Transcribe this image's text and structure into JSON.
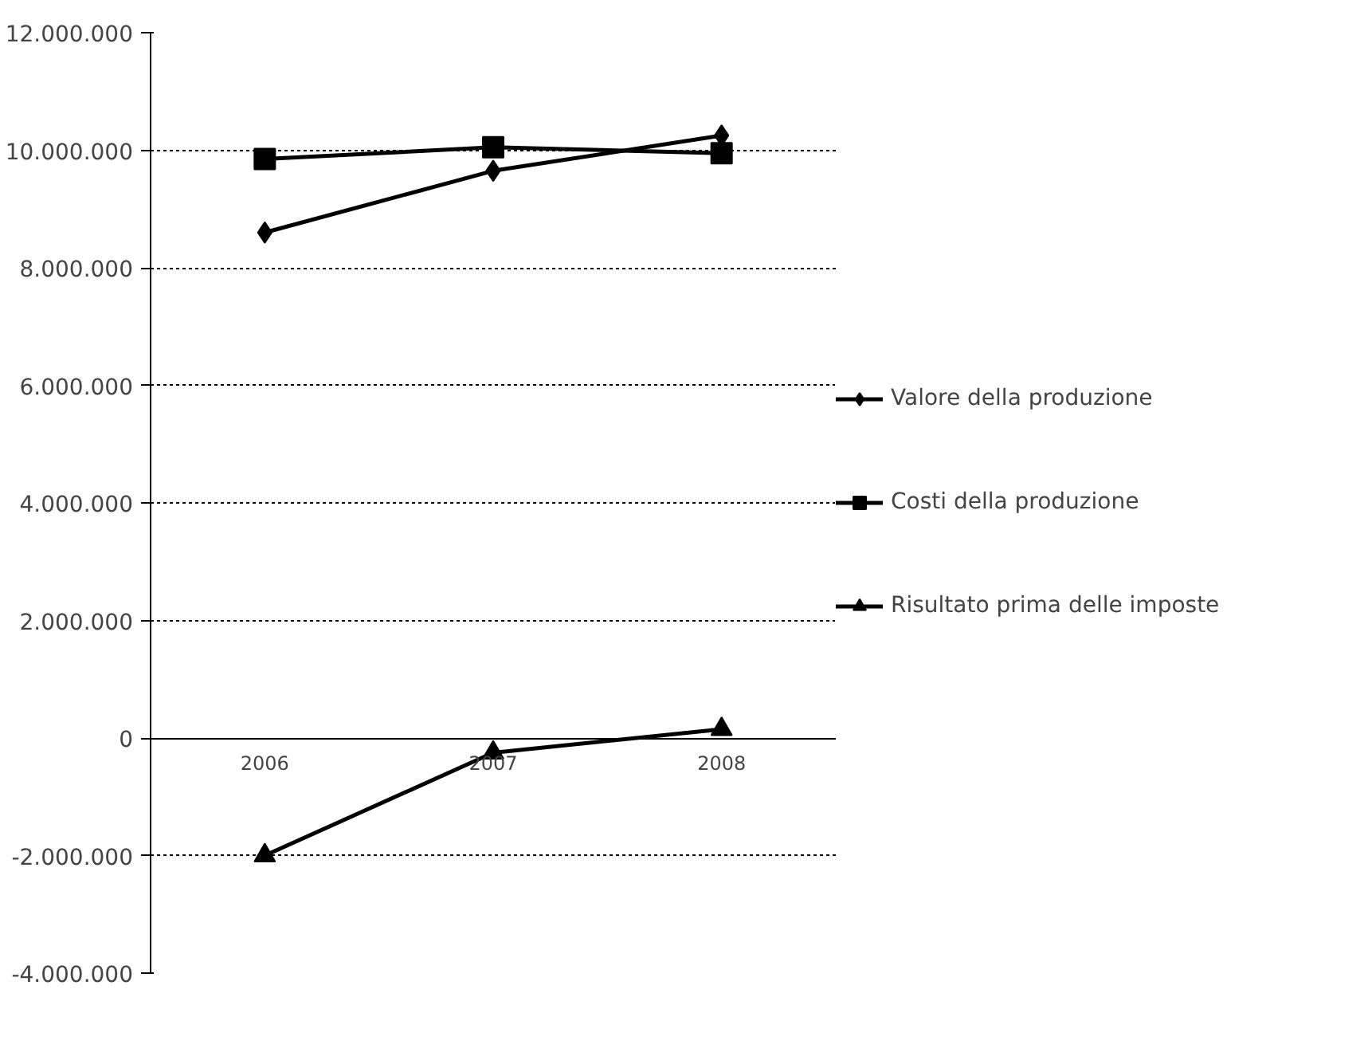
{
  "chart_data": {
    "type": "line",
    "categories": [
      "2006",
      "2007",
      "2008"
    ],
    "series": [
      {
        "name": "Valore della produzione",
        "color": "#000000",
        "marker": "diamond",
        "values": [
          8600000,
          9650000,
          10250000
        ]
      },
      {
        "name": "Costi della produzione",
        "color": "#000000",
        "marker": "square",
        "values": [
          9850000,
          10050000,
          9950000
        ]
      },
      {
        "name": "Risultato prima delle imposte",
        "color": "#000000",
        "marker": "triangle",
        "values": [
          -2000000,
          -250000,
          150000
        ]
      }
    ],
    "ylim": [
      -4000000,
      12000000
    ],
    "yticks": [
      {
        "value": -4000000,
        "label": "-4.000.000"
      },
      {
        "value": -2000000,
        "label": "-2.000.000"
      },
      0,
      {
        "value": 2000000,
        "label": "2.000.000"
      },
      {
        "value": 4000000,
        "label": "4.000.000"
      },
      {
        "value": 6000000,
        "label": "6.000.000"
      },
      {
        "value": 8000000,
        "label": "8.000.000"
      },
      {
        "value": 10000000,
        "label": "10.000.000"
      },
      {
        "value": 12000000,
        "label": "12.000.000"
      }
    ],
    "grid": "y",
    "legend": "right",
    "line_style": "solid"
  }
}
